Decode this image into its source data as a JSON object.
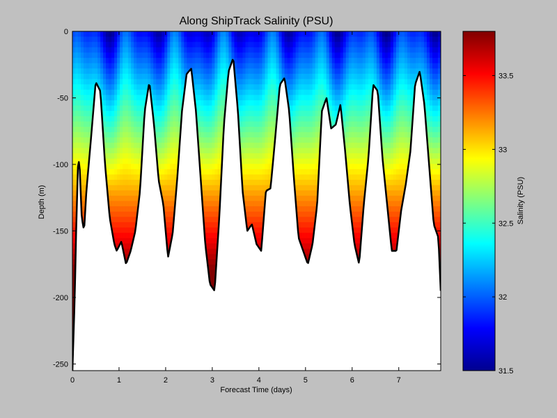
{
  "chart_data": {
    "type": "heatmap",
    "title": "Along ShipTrack Salinity (PSU)",
    "xlabel": "Forecast Time (days)",
    "ylabel": "Depth (m)",
    "xlim": [
      0,
      7.9
    ],
    "ylim": [
      -255,
      0
    ],
    "xticks": [
      "0",
      "1",
      "2",
      "3",
      "4",
      "5",
      "6",
      "7"
    ],
    "yticks": [
      "0",
      "-50",
      "-100",
      "-150",
      "-200",
      "-250"
    ],
    "colorbar": {
      "label": "Salinity (PSU)",
      "range": [
        31.5,
        33.8
      ],
      "ticks": [
        "33.5",
        "33",
        "32.5",
        "32",
        "31.5"
      ],
      "colormap": "jet"
    },
    "bottom_depth_profile": {
      "x": [
        0.0,
        0.05,
        0.08,
        0.12,
        0.15,
        0.2,
        0.25,
        0.3,
        0.4,
        0.5,
        0.6,
        0.7,
        0.8,
        0.9,
        0.95,
        1.05,
        1.15,
        1.25,
        1.35,
        1.45,
        1.55,
        1.65,
        1.75,
        1.85,
        1.95,
        2.05,
        2.15,
        2.25,
        2.35,
        2.45,
        2.55,
        2.65,
        2.75,
        2.85,
        2.95,
        3.05,
        3.15,
        3.25,
        3.35,
        3.45,
        3.55,
        3.65,
        3.75,
        3.85,
        3.95,
        4.05,
        4.15,
        4.25,
        4.35,
        4.45,
        4.55,
        4.65,
        4.75,
        4.85,
        4.95,
        5.05,
        5.15,
        5.25,
        5.35,
        5.45,
        5.55,
        5.65,
        5.75,
        5.85,
        5.95,
        6.05,
        6.15,
        6.25,
        6.35,
        6.45,
        6.55,
        6.65,
        6.75,
        6.85,
        6.95,
        7.05,
        7.15,
        7.25,
        7.35,
        7.45,
        7.55,
        7.65,
        7.75,
        7.85,
        7.9
      ],
      "depth": [
        -255,
        -200,
        -150,
        -100,
        -97,
        -140,
        -150,
        -120,
        -80,
        -38,
        -45,
        -100,
        -140,
        -160,
        -165,
        -158,
        -175,
        -165,
        -150,
        -120,
        -60,
        -38,
        -70,
        -112,
        -130,
        -170,
        -152,
        -110,
        -60,
        -32,
        -28,
        -60,
        -110,
        -160,
        -190,
        -195,
        -140,
        -70,
        -30,
        -20,
        -60,
        -120,
        -150,
        -145,
        -160,
        -165,
        -120,
        -118,
        -80,
        -40,
        -35,
        -60,
        -110,
        -155,
        -165,
        -175,
        -160,
        -130,
        -60,
        -50,
        -73,
        -70,
        -55,
        -90,
        -130,
        -160,
        -175,
        -130,
        -95,
        -40,
        -45,
        -95,
        -130,
        -165,
        -165,
        -135,
        -115,
        -90,
        -40,
        -30,
        -55,
        -100,
        -145,
        -155,
        -195
      ]
    }
  }
}
